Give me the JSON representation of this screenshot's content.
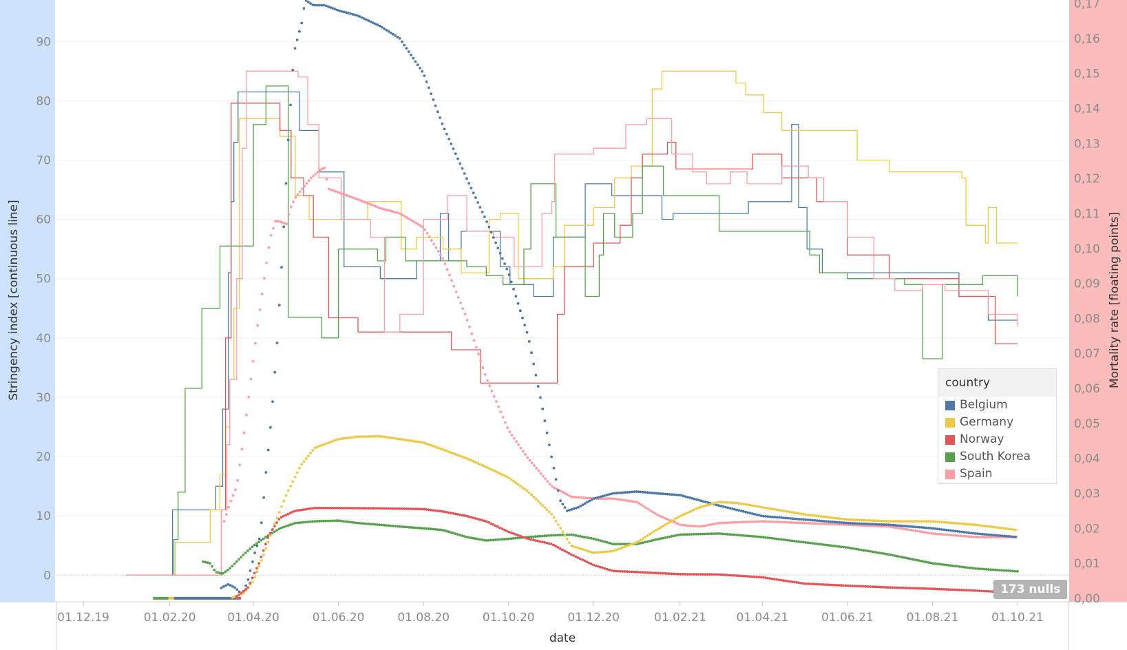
{
  "chart_data": {
    "type": "line",
    "xlabel": "date",
    "y_left_label": "Stringency index [continuous line]",
    "y_right_label": "Mortality rate [floating points]",
    "x_ticks": [
      "01.12.19",
      "01.02.20",
      "01.04.20",
      "01.06.20",
      "01.08.20",
      "01.10.20",
      "01.12.20",
      "01.02.21",
      "01.04.21",
      "01.06.21",
      "01.08.21",
      "01.10.21"
    ],
    "xlim": [
      "2019-12-01",
      "2021-10-01"
    ],
    "y_left_ticks": [
      "0",
      "10",
      "20",
      "30",
      "40",
      "50",
      "60",
      "70",
      "80",
      "90"
    ],
    "y_left_lim": [
      -4.5,
      97
    ],
    "y_right_ticks": [
      "0,00",
      "0,01",
      "0,02",
      "0,03",
      "0,04",
      "0,05",
      "0,06",
      "0,07",
      "0,08",
      "0,09",
      "0,10",
      "0,11",
      "0,12",
      "0,13",
      "0,14",
      "0,15",
      "0,16",
      "0,17"
    ],
    "y_right_lim": [
      -0.001,
      0.171
    ],
    "legend": {
      "title": "country",
      "position": "right"
    },
    "nulls_label": "173 nulls",
    "colors": {
      "Belgium": "#4e79a7",
      "Germany": "#edc948",
      "Norway": "#e15759",
      "South Korea": "#59a14f",
      "Spain": "#ff9da7"
    },
    "stringency_series": [
      {
        "name": "Belgium",
        "dates": [
          "2020-01-01",
          "2020-02-01",
          "2020-02-03",
          "2020-03-02",
          "2020-03-05",
          "2020-03-10",
          "2020-03-14",
          "2020-03-16",
          "2020-03-18",
          "2020-03-21",
          "2020-04-15",
          "2020-05-04",
          "2020-05-18",
          "2020-06-05",
          "2020-07-01",
          "2020-07-27",
          "2020-08-13",
          "2020-08-19",
          "2020-08-28",
          "2020-09-03",
          "2020-09-25",
          "2020-10-02",
          "2020-10-19",
          "2020-11-02",
          "2020-11-25",
          "2020-12-14",
          "2021-01-19",
          "2021-01-27",
          "2021-03-22",
          "2021-03-27",
          "2021-04-22",
          "2021-04-27",
          "2021-05-03",
          "2021-05-14",
          "2021-08-20",
          "2021-09-10",
          "2021-10-01"
        ],
        "values": [
          0,
          0,
          11,
          11,
          15,
          28,
          51,
          63,
          73,
          81.5,
          81.5,
          75,
          68,
          52,
          50,
          53,
          61,
          53,
          58,
          58,
          52,
          49,
          47,
          57,
          66,
          64,
          60,
          61,
          63,
          63,
          76,
          62,
          55,
          51,
          47,
          43,
          43
        ]
      },
      {
        "name": "Germany",
        "dates": [
          "2020-01-01",
          "2020-01-25",
          "2020-02-05",
          "2020-03-01",
          "2020-03-08",
          "2020-03-12",
          "2020-03-15",
          "2020-03-18",
          "2020-03-22",
          "2020-04-20",
          "2020-05-01",
          "2020-05-11",
          "2020-06-22",
          "2020-07-16",
          "2020-07-27",
          "2020-08-15",
          "2020-08-28",
          "2020-09-06",
          "2020-09-17",
          "2020-09-25",
          "2020-10-08",
          "2020-11-02",
          "2020-11-10",
          "2020-12-01",
          "2020-12-16",
          "2020-12-28",
          "2021-01-12",
          "2021-01-19",
          "2021-03-13",
          "2021-03-20",
          "2021-04-02",
          "2021-04-15",
          "2021-04-28",
          "2021-06-01",
          "2021-06-08",
          "2021-07-01",
          "2021-08-22",
          "2021-08-25",
          "2021-09-04",
          "2021-09-08",
          "2021-09-10",
          "2021-09-16",
          "2021-10-01"
        ],
        "values": [
          0,
          0,
          5.5,
          11,
          17,
          25,
          33,
          45,
          77,
          74,
          64,
          60,
          63,
          55,
          57,
          55,
          51,
          51,
          60,
          61,
          50,
          52,
          59,
          62,
          67,
          69,
          82,
          85,
          83,
          81,
          78,
          75,
          75,
          75,
          70,
          68,
          67,
          59,
          59,
          56,
          62,
          56,
          56
        ]
      },
      {
        "name": "Norway",
        "dates": [
          "2020-01-01",
          "2020-02-03",
          "2020-03-09",
          "2020-03-12",
          "2020-03-16",
          "2020-04-20",
          "2020-04-28",
          "2020-05-07",
          "2020-05-14",
          "2020-05-25",
          "2020-06-15",
          "2020-08-01",
          "2020-08-21",
          "2020-09-11",
          "2020-10-28",
          "2020-11-05",
          "2020-11-10",
          "2020-12-01",
          "2020-12-20",
          "2020-12-28",
          "2021-01-05",
          "2021-01-23",
          "2021-01-29",
          "2021-03-25",
          "2021-03-31",
          "2021-04-15",
          "2021-05-10",
          "2021-06-01",
          "2021-07-01",
          "2021-08-20",
          "2021-09-15",
          "2021-10-01"
        ],
        "values": [
          0,
          0,
          11,
          40,
          79.6,
          75,
          67,
          64,
          57,
          43.4,
          41,
          41,
          38,
          32.4,
          32.4,
          44,
          52,
          56,
          59,
          67,
          71,
          73,
          68.5,
          71,
          71,
          67,
          63,
          54,
          50,
          47,
          39,
          39
        ]
      },
      {
        "name": "South Korea",
        "dates": [
          "2020-01-01",
          "2020-01-20",
          "2020-01-28",
          "2020-02-04",
          "2020-02-07",
          "2020-02-12",
          "2020-02-16",
          "2020-02-20",
          "2020-02-24",
          "2020-03-08",
          "2020-03-14",
          "2020-03-27",
          "2020-04-01",
          "2020-04-10",
          "2020-04-26",
          "2020-05-06",
          "2020-05-20",
          "2020-06-01",
          "2020-06-29",
          "2020-07-05",
          "2020-07-19",
          "2020-09-01",
          "2020-09-15",
          "2020-09-27",
          "2020-10-12",
          "2020-10-17",
          "2020-11-04",
          "2020-11-25",
          "2020-12-05",
          "2020-12-08",
          "2020-12-16",
          "2020-12-29",
          "2021-01-05",
          "2021-01-20",
          "2021-03-01",
          "2021-04-30",
          "2021-05-05",
          "2021-05-12",
          "2021-06-01",
          "2021-06-30",
          "2021-07-12",
          "2021-07-20",
          "2021-07-25",
          "2021-08-08",
          "2021-09-06",
          "2021-10-01"
        ],
        "values": [
          0,
          0,
          0,
          6,
          14,
          31.5,
          31.5,
          31.5,
          45,
          55.5,
          55.5,
          55.5,
          76,
          82.5,
          43.5,
          43.5,
          40,
          55,
          53,
          57,
          53,
          52,
          50.5,
          49,
          55,
          66,
          57,
          47,
          54,
          61,
          57,
          61,
          69,
          64,
          58,
          58,
          54,
          51,
          50,
          50,
          49,
          49,
          36.5,
          49,
          50.5,
          47
        ]
      },
      {
        "name": "Spain",
        "dates": [
          "2020-01-01",
          "2020-02-03",
          "2020-03-09",
          "2020-03-13",
          "2020-03-15",
          "2020-03-20",
          "2020-03-24",
          "2020-03-27",
          "2020-04-25",
          "2020-05-03",
          "2020-05-10",
          "2020-05-18",
          "2020-06-03",
          "2020-06-24",
          "2020-07-04",
          "2020-07-15",
          "2020-08-01",
          "2020-08-18",
          "2020-09-01",
          "2020-09-20",
          "2020-10-05",
          "2020-10-25",
          "2020-11-01",
          "2020-11-03",
          "2020-12-01",
          "2020-12-24",
          "2021-01-08",
          "2021-01-26",
          "2021-02-10",
          "2021-02-20",
          "2021-03-09",
          "2021-03-21",
          "2021-04-15",
          "2021-05-04",
          "2021-05-15",
          "2021-06-01",
          "2021-06-20",
          "2021-07-05",
          "2021-07-25",
          "2021-08-10",
          "2021-09-10",
          "2021-10-01"
        ],
        "values": [
          0,
          0,
          11,
          22,
          33,
          50,
          72,
          85,
          85,
          84,
          76,
          67,
          60,
          57,
          41,
          44,
          60,
          64,
          58,
          57,
          52,
          61,
          63,
          71,
          72,
          76,
          77,
          71,
          68,
          66,
          68,
          66,
          69,
          67,
          63,
          57,
          50,
          48,
          49,
          48,
          44,
          42
        ]
      }
    ],
    "mortality_series": [
      {
        "name": "Belgium",
        "dates": [
          "2020-03-09",
          "2020-03-14",
          "2020-03-19",
          "2020-03-24",
          "2020-03-28",
          "2020-04-02",
          "2020-04-06",
          "2020-04-10",
          "2020-04-14",
          "2020-04-18",
          "2020-04-22",
          "2020-04-26",
          "2020-04-30",
          "2020-05-06",
          "2020-05-08",
          "2020-05-14",
          "2020-05-22",
          "2020-06-01",
          "2020-06-15",
          "2020-07-01",
          "2020-07-15",
          "2020-08-01",
          "2020-08-15",
          "2020-09-01",
          "2020-09-15",
          "2020-10-01",
          "2020-10-15",
          "2020-10-25",
          "2020-11-01",
          "2020-11-07",
          "2020-11-12",
          "2020-11-20",
          "2020-12-01",
          "2020-12-15",
          "2021-01-01",
          "2021-01-15",
          "2021-02-01",
          "2021-02-15",
          "2021-03-01",
          "2021-04-01",
          "2021-05-01",
          "2021-06-01",
          "2021-07-01",
          "2021-08-01",
          "2021-09-01",
          "2021-10-01"
        ],
        "values": [
          0.003,
          0.004,
          0.003,
          0.001,
          0.005,
          0.013,
          0.018,
          0.036,
          0.052,
          0.073,
          0.1,
          0.131,
          0.156,
          0.165,
          0.171,
          0.1695,
          0.1695,
          0.168,
          0.1665,
          0.1635,
          0.16,
          0.15,
          0.135,
          0.12,
          0.108,
          0.093,
          0.075,
          0.055,
          0.04,
          0.028,
          0.025,
          0.026,
          0.0285,
          0.03,
          0.0305,
          0.03,
          0.0295,
          0.028,
          0.0265,
          0.0235,
          0.0225,
          0.0215,
          0.021,
          0.02,
          0.0185,
          0.0175
        ]
      },
      {
        "name": "Germany",
        "dates": [
          "2020-03-17",
          "2020-03-25",
          "2020-04-01",
          "2020-04-08",
          "2020-04-15",
          "2020-04-25",
          "2020-05-05",
          "2020-05-15",
          "2020-06-01",
          "2020-06-15",
          "2020-07-01",
          "2020-07-15",
          "2020-08-01",
          "2020-08-15",
          "2020-09-01",
          "2020-09-15",
          "2020-10-01",
          "2020-10-15",
          "2020-11-01",
          "2020-11-15",
          "2020-12-01",
          "2020-12-15",
          "2021-01-01",
          "2021-01-15",
          "2021-02-01",
          "2021-02-15",
          "2021-03-01",
          "2021-03-15",
          "2021-04-01",
          "2021-05-01",
          "2021-06-01",
          "2021-07-01",
          "2021-08-01",
          "2021-09-01",
          "2021-10-01"
        ],
        "values": [
          0.0002,
          0.0015,
          0.005,
          0.012,
          0.02,
          0.03,
          0.038,
          0.043,
          0.0455,
          0.0462,
          0.0463,
          0.0455,
          0.0445,
          0.0425,
          0.04,
          0.0375,
          0.0345,
          0.0305,
          0.024,
          0.015,
          0.013,
          0.0135,
          0.016,
          0.0195,
          0.0235,
          0.026,
          0.0275,
          0.0272,
          0.026,
          0.024,
          0.0225,
          0.022,
          0.022,
          0.021,
          0.0195
        ]
      },
      {
        "name": "Norway",
        "dates": [
          "2020-03-20",
          "2020-03-28",
          "2020-04-05",
          "2020-04-12",
          "2020-04-20",
          "2020-05-01",
          "2020-05-15",
          "2020-06-01",
          "2020-07-01",
          "2020-08-01",
          "2020-08-15",
          "2020-09-01",
          "2020-09-15",
          "2020-10-01",
          "2020-10-15",
          "2020-11-01",
          "2020-11-15",
          "2020-12-01",
          "2020-12-15",
          "2021-01-01",
          "2021-02-01",
          "2021-03-01",
          "2021-04-01",
          "2021-05-01",
          "2021-06-01",
          "2021-07-01",
          "2021-08-01",
          "2021-09-01",
          "2021-10-01"
        ],
        "values": [
          0.0005,
          0.003,
          0.01,
          0.018,
          0.023,
          0.025,
          0.0258,
          0.0258,
          0.0257,
          0.0255,
          0.0248,
          0.0235,
          0.022,
          0.019,
          0.017,
          0.0155,
          0.0125,
          0.0095,
          0.0078,
          0.0075,
          0.0069,
          0.0068,
          0.006,
          0.0042,
          0.0036,
          0.0031,
          0.0027,
          0.0022,
          0.0015
        ]
      },
      {
        "name": "South Korea",
        "dates": [
          "2020-02-25",
          "2020-03-01",
          "2020-03-05",
          "2020-03-10",
          "2020-03-15",
          "2020-03-20",
          "2020-03-25",
          "2020-04-01",
          "2020-04-10",
          "2020-04-20",
          "2020-05-01",
          "2020-05-15",
          "2020-06-01",
          "2020-06-15",
          "2020-07-01",
          "2020-07-15",
          "2020-08-01",
          "2020-08-15",
          "2020-09-01",
          "2020-09-15",
          "2020-10-01",
          "2020-10-15",
          "2020-11-01",
          "2020-11-15",
          "2020-12-01",
          "2020-12-15",
          "2021-01-01",
          "2021-01-15",
          "2021-02-01",
          "2021-03-01",
          "2021-04-01",
          "2021-05-01",
          "2021-06-01",
          "2021-07-01",
          "2021-08-01",
          "2021-09-01",
          "2021-10-01"
        ],
        "values": [
          0.0105,
          0.01,
          0.0075,
          0.007,
          0.0085,
          0.0105,
          0.0125,
          0.015,
          0.0175,
          0.02,
          0.0215,
          0.022,
          0.0222,
          0.0215,
          0.021,
          0.0205,
          0.02,
          0.0195,
          0.0175,
          0.0165,
          0.017,
          0.0175,
          0.018,
          0.0182,
          0.017,
          0.0155,
          0.0155,
          0.0168,
          0.0182,
          0.0185,
          0.0175,
          0.016,
          0.0145,
          0.0125,
          0.01,
          0.0085,
          0.0077
        ]
      },
      {
        "name": "Spain",
        "dates": [
          "2020-03-11",
          "2020-03-15",
          "2020-03-20",
          "2020-03-25",
          "2020-03-30",
          "2020-04-04",
          "2020-04-09",
          "2020-04-13",
          "2020-04-17",
          "2020-04-21",
          "2020-04-25",
          "2020-04-27",
          "2020-05-01",
          "2020-05-06",
          "2020-05-12",
          "2020-05-19",
          "2020-05-22",
          "2020-05-25",
          "2020-06-01",
          "2020-06-15",
          "2020-07-01",
          "2020-07-15",
          "2020-08-01",
          "2020-08-15",
          "2020-09-01",
          "2020-09-15",
          "2020-10-01",
          "2020-10-15",
          "2020-11-01",
          "2020-11-15",
          "2020-12-01",
          "2020-12-15",
          "2021-01-01",
          "2021-01-15",
          "2021-02-01",
          "2021-02-15",
          "2021-03-01",
          "2021-04-01",
          "2021-05-01",
          "2021-06-01",
          "2021-07-01",
          "2021-08-01",
          "2021-09-01",
          "2021-10-01"
        ],
        "values": [
          0.022,
          0.027,
          0.032,
          0.046,
          0.062,
          0.078,
          0.092,
          0.103,
          0.108,
          0.1075,
          0.107,
          0.111,
          0.1145,
          0.117,
          0.12,
          0.1225,
          0.123,
          0.117,
          0.116,
          0.114,
          0.1115,
          0.11,
          0.106,
          0.097,
          0.08,
          0.063,
          0.048,
          0.04,
          0.032,
          0.029,
          0.0285,
          0.0285,
          0.0275,
          0.024,
          0.021,
          0.0205,
          0.0215,
          0.022,
          0.0215,
          0.021,
          0.0205,
          0.0185,
          0.0175,
          0.0175
        ]
      }
    ],
    "null_markers": [
      {
        "name": "South Korea",
        "start": "2020-01-20",
        "end": "2020-01-31"
      },
      {
        "name": "Germany",
        "start": "2020-01-31",
        "end": "2020-02-04"
      },
      {
        "name": "Belgium",
        "start": "2020-02-04",
        "end": "2020-03-20"
      },
      {
        "name": "Norway",
        "start": "2020-03-20",
        "end": "2020-03-23"
      }
    ]
  }
}
